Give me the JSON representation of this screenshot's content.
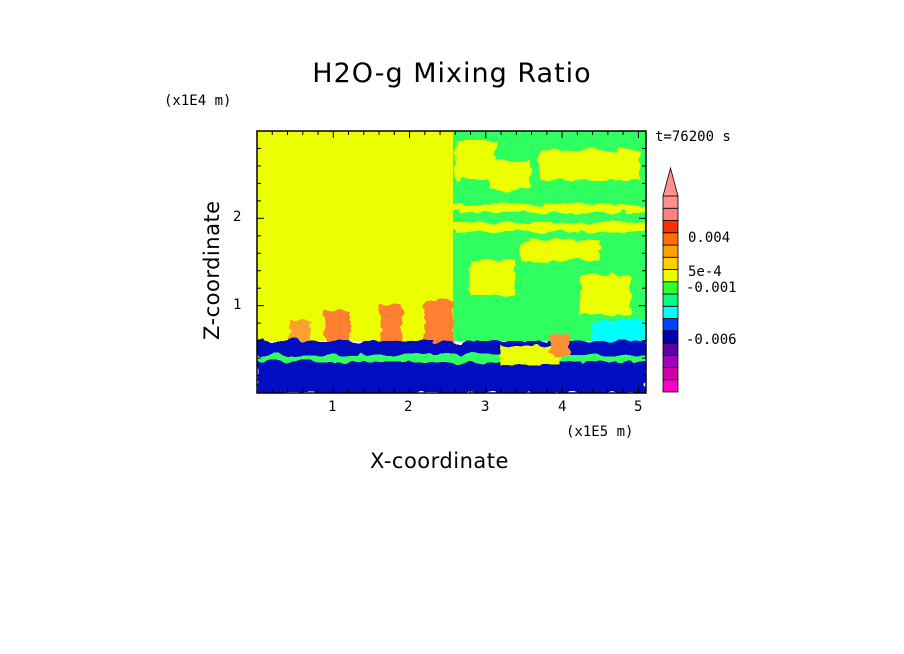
{
  "chart_data": {
    "type": "heatmap",
    "title": "H2O-g Mixing Ratio",
    "xlabel": "X-coordinate",
    "ylabel": "Z-coordinate",
    "x_scale_label": "(x1E5 m)",
    "y_scale_label": "(x1E4 m)",
    "time_label": "t=76200 s",
    "xlim": [
      0,
      5.1
    ],
    "ylim": [
      0,
      3.0
    ],
    "x_ticks": [
      "1",
      "2",
      "3",
      "4",
      "5"
    ],
    "y_ticks": [
      "1",
      "2"
    ],
    "colorbar": {
      "labels": [
        "0.004",
        "5e-4",
        "-0.001",
        "-0.006"
      ],
      "colors": [
        "#ff00c8",
        "#d000a8",
        "#a000c0",
        "#6000a0",
        "#0000b0",
        "#0040ff",
        "#00ffff",
        "#00ff80",
        "#30ff30",
        "#e8ff00",
        "#ffd000",
        "#ffa000",
        "#ff7000",
        "#ff3000",
        "#ff8080",
        "#ff9090"
      ]
    },
    "regions": [
      {
        "name": "upper-left",
        "dominant_color": "#ecff00"
      },
      {
        "name": "upper-right",
        "dominant_color": "#00ff80"
      },
      {
        "name": "boundary-layer",
        "dominant_color": "#0010c0"
      }
    ]
  }
}
